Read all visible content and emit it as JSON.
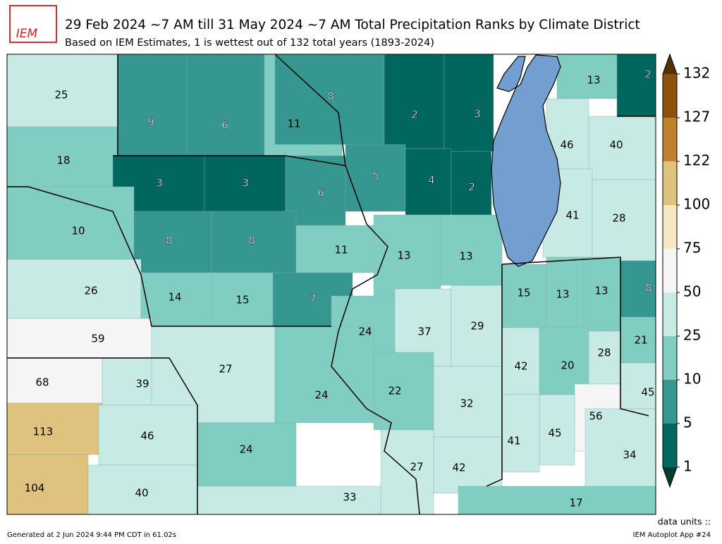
{
  "title": "29 Feb 2024 ~7 AM till 31 May 2024 ~7 AM Total Precipitation Ranks by Climate District",
  "subtitle": "Based on IEM Estimates, 1 is wettest out of 132 total years (1893-2024)",
  "logo": "IEM",
  "colorbar": {
    "ticks": [
      1,
      5,
      10,
      25,
      50,
      75,
      100,
      122,
      127,
      132
    ],
    "colors": [
      "#01665e",
      "#35978f",
      "#80cdc1",
      "#c7eae5",
      "#f5f5f5",
      "#f6e8c3",
      "#dfc27d",
      "#bf812d",
      "#8c510a"
    ],
    "under": "#003c30",
    "over": "#543005"
  },
  "lake_color": "#729fcf",
  "districts": [
    25,
    18,
    9,
    6,
    11,
    8,
    2,
    3,
    13,
    2,
    46,
    40,
    3,
    3,
    6,
    5,
    4,
    2,
    41,
    28,
    10,
    8,
    8,
    11,
    13,
    13,
    26,
    14,
    15,
    7,
    15,
    13,
    13,
    8,
    59,
    24,
    37,
    29,
    21,
    28,
    42,
    20,
    68,
    39,
    27,
    24,
    22,
    32,
    45,
    56,
    113,
    46,
    24,
    45,
    41,
    27,
    42,
    34,
    104,
    40,
    33,
    17
  ],
  "units_label": "data units ::",
  "generated": "Generated at 2 Jun 2024 9:44 PM CDT in 61.02s",
  "app": "IEM Autoplot App #24"
}
